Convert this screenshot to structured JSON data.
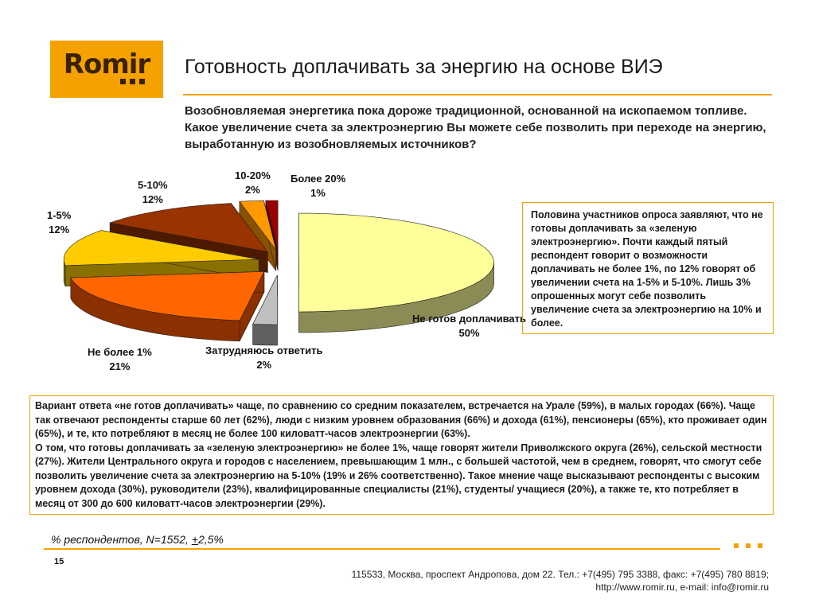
{
  "logo": {
    "text": "Romir"
  },
  "title": "Готовность доплачивать за энергию на основе ВИЭ",
  "question": "Возобновляемая энергетика пока дороже традиционной, основанной на ископаемом топливе. Какое увеличение счета за электроэнергию Вы можете себе позволить при переходе на энергию, выработанную из возобновляемых источников?",
  "chart_data": {
    "type": "pie",
    "title": "",
    "slices": [
      {
        "name": "Не готов доплачивать",
        "value": 50,
        "label": "50%",
        "color": "#ffff99",
        "side_color": "#8b8b55"
      },
      {
        "name": "Затрудняюсь ответить",
        "value": 2,
        "label": "2%",
        "color": "#c0c0c0",
        "side_color": "#606060"
      },
      {
        "name": "Не более 1%",
        "value": 21,
        "label": "21%",
        "color": "#ff6600",
        "side_color": "#8b3000"
      },
      {
        "name": "1-5%",
        "value": 12,
        "label": "12%",
        "color": "#ffcc00",
        "side_color": "#8a7000"
      },
      {
        "name": "5-10%",
        "value": 12,
        "label": "12%",
        "color": "#993300",
        "side_color": "#4d1a00"
      },
      {
        "name": "10-20%",
        "value": 2,
        "label": "2%",
        "color": "#ff9900",
        "side_color": "#8a5200"
      },
      {
        "name": "Более 20%",
        "value": 1,
        "label": "1%",
        "color": "#990000",
        "side_color": "#4d0000"
      }
    ]
  },
  "side_text": "Половина участников опроса заявляют, что не готовы доплачивать за «зеленую электроэнергию». Почти каждый пятый респондент говорит о возможности доплачивать не более 1%, по 12% говорят об увеличении счета на 1-5% и 5-10%. Лишь 3% опрошенных могут себе позволить увеличение счета за электроэнергию на 10% и более.",
  "bottom_text": {
    "p1": "Вариант ответа «не готов доплачивать» чаще, по сравнению со средним показателем, встречается на Урале (59%), в малых городах (66%). Чаще так отвечают респонденты старше 60 лет (62%), люди с низким уровнем образования (66%) и дохода (61%), пенсионеры (65%), кто проживает один (65%), и те, кто потребляют в месяц не более 100 киловатт-часов электроэнергии (63%).",
    "p2": "О том, что готовы доплачивать за «зеленую электроэнергию» не более 1%, чаще говорят жители Приволжского округа (26%), сельской местности (27%). Жители Центрального округа и городов с населением, превышающим 1 млн., с большей частотой, чем в среднем, говорят, что смогут себе позволить увеличение счета за электроэнергию на 5-10% (19% и 26% соответственно). Такое мнение чаще высказывают респонденты с высоким уровнем дохода (30%), руководители (23%), квалифицированные специалисты (21%), студенты/ учащиеся (20%), а также те, кто потребляет в месяц от 300 до 600 киловатт-часов электроэнергии (29%)."
  },
  "footnote": {
    "prefix": "% респондентов, N=1552, ",
    "pm": "+",
    "suffix": "2,5%"
  },
  "page_number": "15",
  "address": {
    "line1": "115533, Москва, проспект Андропова, дом 22.   Тел.: +7(495) 795 3388, факс: +7(495) 780 8819;",
    "line2": "http://www.romir.ru, e-mail: info@romir.ru"
  }
}
